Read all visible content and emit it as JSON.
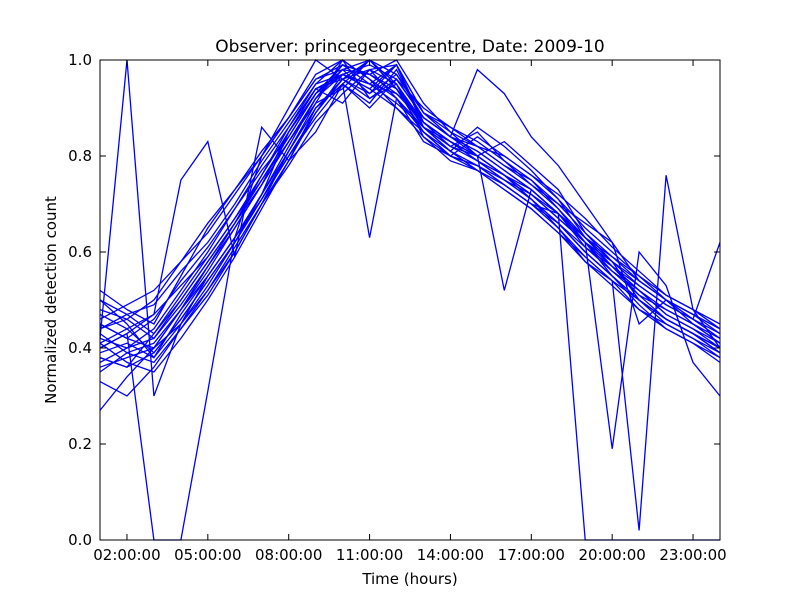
{
  "chart_data": {
    "type": "line",
    "title": "Observer: princegeorgecentre, Date: 2009-10",
    "xlabel": "Time (hours)",
    "ylabel": "Normalized detection count",
    "x_unit": "hour of day",
    "xlim": [
      1,
      24
    ],
    "ylim": [
      0,
      1
    ],
    "x_ticks": [
      {
        "value": 2,
        "label": "02:00:00"
      },
      {
        "value": 5,
        "label": "05:00:00"
      },
      {
        "value": 8,
        "label": "08:00:00"
      },
      {
        "value": 11,
        "label": "11:00:00"
      },
      {
        "value": 14,
        "label": "14:00:00"
      },
      {
        "value": 17,
        "label": "17:00:00"
      },
      {
        "value": 20,
        "label": "20:00:00"
      },
      {
        "value": 23,
        "label": "23:00:00"
      }
    ],
    "y_ticks": [
      {
        "value": 0,
        "label": "0.0"
      },
      {
        "value": 0.2,
        "label": "0.2"
      },
      {
        "value": 0.4,
        "label": "0.4"
      },
      {
        "value": 0.6,
        "label": "0.6"
      },
      {
        "value": 0.8,
        "label": "0.8"
      },
      {
        "value": 1,
        "label": "1.0"
      }
    ],
    "line_color": "#0000ff",
    "grid": false,
    "legend": "none",
    "x": [
      1,
      2,
      3,
      4,
      5,
      6,
      7,
      8,
      9,
      10,
      11,
      12,
      13,
      14,
      15,
      16,
      17,
      18,
      19,
      20,
      21,
      22,
      23,
      24
    ],
    "series": [
      {
        "values": [
          0.45,
          0.42,
          0.4,
          0.48,
          0.55,
          0.63,
          0.72,
          0.82,
          0.92,
          0.97,
          0.95,
          0.93,
          0.88,
          0.84,
          0.82,
          0.8,
          0.76,
          0.71,
          0.65,
          0.6,
          0.55,
          0.5,
          0.47,
          0.44
        ]
      },
      {
        "values": [
          0.38,
          0.36,
          0.43,
          0.5,
          0.58,
          0.66,
          0.76,
          0.86,
          0.95,
          1.0,
          0.96,
          0.9,
          0.85,
          0.8,
          0.78,
          0.75,
          0.72,
          0.68,
          0.63,
          0.57,
          0.52,
          0.47,
          0.44,
          0.4
        ]
      },
      {
        "values": [
          0.5,
          0.45,
          0.38,
          0.45,
          0.52,
          0.6,
          0.7,
          0.79,
          0.9,
          0.95,
          1.0,
          0.94,
          0.86,
          0.82,
          0.85,
          0.79,
          0.74,
          0.7,
          0.66,
          0.62,
          0.54,
          0.5,
          0.45,
          0.42
        ]
      },
      {
        "values": [
          0.42,
          0.4,
          0.44,
          0.52,
          0.6,
          0.69,
          0.77,
          0.84,
          0.93,
          0.98,
          0.97,
          1.0,
          0.91,
          0.85,
          0.8,
          0.83,
          0.78,
          0.73,
          0.64,
          0.58,
          0.5,
          0.46,
          0.43,
          0.39
        ]
      },
      {
        "values": [
          0.35,
          0.39,
          0.41,
          0.48,
          0.56,
          0.65,
          0.74,
          0.85,
          0.94,
          0.91,
          0.98,
          0.95,
          0.87,
          0.83,
          0.79,
          0.76,
          0.71,
          0.66,
          0.6,
          0.55,
          0.49,
          0.44,
          0.41,
          0.37
        ]
      },
      {
        "values": [
          0.47,
          0.44,
          0.39,
          0.46,
          0.54,
          0.62,
          0.71,
          0.8,
          0.89,
          0.96,
          0.93,
          0.99,
          0.89,
          0.86,
          0.82,
          0.78,
          0.75,
          0.69,
          0.62,
          0.56,
          0.51,
          0.48,
          0.45,
          0.41
        ]
      },
      {
        "values": [
          0.52,
          0.48,
          0.45,
          0.55,
          0.65,
          0.73,
          0.8,
          0.88,
          0.97,
          1.0,
          0.92,
          0.95,
          0.84,
          0.79,
          0.77,
          0.73,
          0.69,
          0.64,
          0.59,
          0.54,
          0.48,
          0.45,
          0.42,
          0.39
        ]
      },
      {
        "values": [
          0.4,
          0.43,
          0.47,
          0.53,
          0.59,
          0.67,
          0.75,
          0.83,
          0.91,
          0.94,
          1.0,
          0.97,
          0.88,
          0.84,
          0.81,
          0.77,
          0.73,
          0.68,
          0.61,
          0.57,
          0.53,
          0.49,
          0.46,
          0.43
        ]
      },
      {
        "values": [
          0.33,
          0.3,
          0.36,
          0.44,
          0.52,
          0.61,
          0.7,
          0.78,
          0.87,
          0.93,
          0.98,
          0.92,
          0.83,
          0.8,
          0.84,
          0.8,
          0.76,
          0.72,
          0.67,
          0.61,
          0.56,
          0.51,
          0.48,
          0.44
        ]
      },
      {
        "values": [
          0.48,
          0.46,
          0.42,
          0.5,
          0.58,
          0.66,
          0.74,
          0.83,
          0.92,
          0.99,
          0.95,
          0.91,
          0.86,
          0.82,
          0.8,
          0.76,
          0.72,
          0.67,
          0.62,
          0.58,
          0.53,
          0.49,
          0.46,
          0.42
        ]
      },
      {
        "values": [
          0.44,
          0.47,
          0.49,
          0.56,
          0.62,
          0.7,
          0.79,
          0.87,
          0.95,
          0.97,
          0.99,
          0.96,
          0.9,
          0.86,
          0.83,
          0.79,
          0.75,
          0.7,
          0.64,
          0.59,
          0.55,
          0.51,
          0.48,
          0.45
        ]
      },
      {
        "values": [
          0.39,
          0.41,
          0.38,
          0.47,
          0.55,
          0.63,
          0.71,
          0.8,
          0.88,
          0.95,
          0.91,
          0.98,
          0.87,
          0.83,
          0.79,
          0.75,
          0.71,
          0.66,
          0.6,
          0.55,
          0.5,
          0.46,
          0.43,
          0.4
        ]
      },
      {
        "values": [
          0.36,
          0.38,
          0.4,
          0.45,
          0.53,
          0.62,
          0.72,
          0.81,
          0.9,
          0.96,
          1.0,
          0.94,
          0.85,
          0.81,
          0.78,
          0.74,
          0.7,
          0.66,
          0.61,
          0.56,
          0.52,
          0.47,
          0.44,
          0.41
        ]
      },
      {
        "values": [
          0.41,
          0.37,
          0.35,
          0.42,
          0.5,
          0.59,
          0.69,
          0.79,
          0.89,
          0.97,
          0.94,
          0.9,
          0.84,
          0.8,
          0.77,
          0.73,
          0.69,
          0.64,
          0.58,
          0.53,
          0.48,
          0.44,
          0.41,
          0.38
        ]
      },
      {
        "values": [
          0.46,
          0.49,
          0.52,
          0.58,
          0.64,
          0.72,
          0.8,
          0.88,
          0.96,
          0.98,
          0.93,
          0.97,
          0.89,
          0.85,
          0.82,
          0.78,
          0.74,
          0.69,
          0.63,
          0.58,
          0.54,
          0.5,
          0.47,
          0.44
        ]
      },
      {
        "values": [
          0.43,
          0.39,
          0.37,
          0.44,
          0.51,
          0.6,
          0.7,
          0.81,
          0.91,
          1.0,
          0.96,
          0.92,
          0.86,
          0.83,
          0.8,
          0.76,
          0.73,
          0.68,
          0.62,
          0.57,
          0.52,
          0.48,
          0.45,
          0.41
        ]
      },
      {
        "values": [
          0.27,
          0.34,
          0.4,
          0.48,
          0.57,
          0.66,
          0.75,
          0.84,
          0.93,
          0.99,
          0.97,
          0.93,
          0.87,
          0.82,
          0.79,
          0.75,
          0.71,
          0.65,
          0.59,
          0.54,
          0.5,
          0.46,
          0.43,
          0.4
        ]
      },
      {
        "values": [
          0.5,
          0.47,
          0.43,
          0.51,
          0.59,
          0.67,
          0.76,
          0.85,
          0.94,
          0.96,
          0.92,
          0.96,
          0.88,
          0.84,
          0.81,
          0.77,
          0.73,
          0.68,
          0.63,
          0.59,
          0.54,
          0.5,
          0.47,
          0.43
        ]
      },
      {
        "values": [
          0.37,
          0.4,
          0.42,
          0.49,
          0.57,
          0.65,
          0.74,
          0.83,
          0.92,
          0.98,
          1.0,
          0.95,
          0.86,
          0.81,
          0.86,
          0.82,
          0.77,
          0.71,
          0.63,
          0.57,
          0.51,
          0.46,
          0.43,
          0.39
        ]
      },
      {
        "values": [
          0.45,
          0.42,
          0.46,
          0.54,
          0.61,
          0.69,
          0.78,
          0.86,
          0.94,
          0.97,
          0.95,
          0.99,
          0.89,
          0.84,
          0.8,
          0.76,
          0.71,
          0.66,
          0.6,
          0.55,
          0.5,
          0.46,
          0.43,
          0.4
        ]
      },
      {
        "values": [
          0.42,
          1.0,
          0.3,
          0.45,
          0.55,
          0.63,
          0.72,
          0.85,
          0.93,
          0.97,
          0.94,
          0.99,
          0.87,
          0.83,
          0.8,
          0.76,
          0.72,
          0.67,
          0.62,
          0.55,
          0.5,
          0.45,
          0.42,
          0.38
        ]
      },
      {
        "values": [
          0.4,
          0.43,
          0.0,
          0.0,
          0.31,
          0.63,
          0.8,
          0.9,
          1.0,
          0.96,
          0.98,
          0.99,
          0.86,
          0.81,
          0.77,
          0.74,
          0.7,
          0.68,
          0.0,
          0.0,
          0.0,
          0.0,
          0.0,
          0.0
        ]
      },
      {
        "values": [
          0.44,
          0.46,
          0.5,
          0.58,
          0.66,
          0.73,
          0.81,
          0.88,
          0.96,
          0.99,
          0.97,
          0.94,
          0.87,
          0.83,
          0.8,
          0.52,
          0.73,
          0.68,
          0.62,
          0.19,
          0.6,
          0.53,
          0.37,
          0.3
        ]
      },
      {
        "values": [
          0.38,
          0.36,
          0.39,
          0.46,
          0.54,
          0.62,
          0.71,
          0.81,
          0.9,
          0.95,
          0.63,
          0.92,
          0.85,
          0.8,
          0.78,
          0.74,
          0.7,
          0.65,
          0.58,
          0.54,
          0.02,
          0.76,
          0.48,
          0.4
        ]
      },
      {
        "values": [
          0.41,
          0.44,
          0.47,
          0.75,
          0.83,
          0.59,
          0.86,
          0.79,
          0.85,
          0.95,
          0.9,
          0.96,
          0.88,
          0.84,
          0.98,
          0.93,
          0.84,
          0.78,
          0.7,
          0.62,
          0.45,
          0.5,
          0.46,
          0.62
        ]
      }
    ]
  }
}
